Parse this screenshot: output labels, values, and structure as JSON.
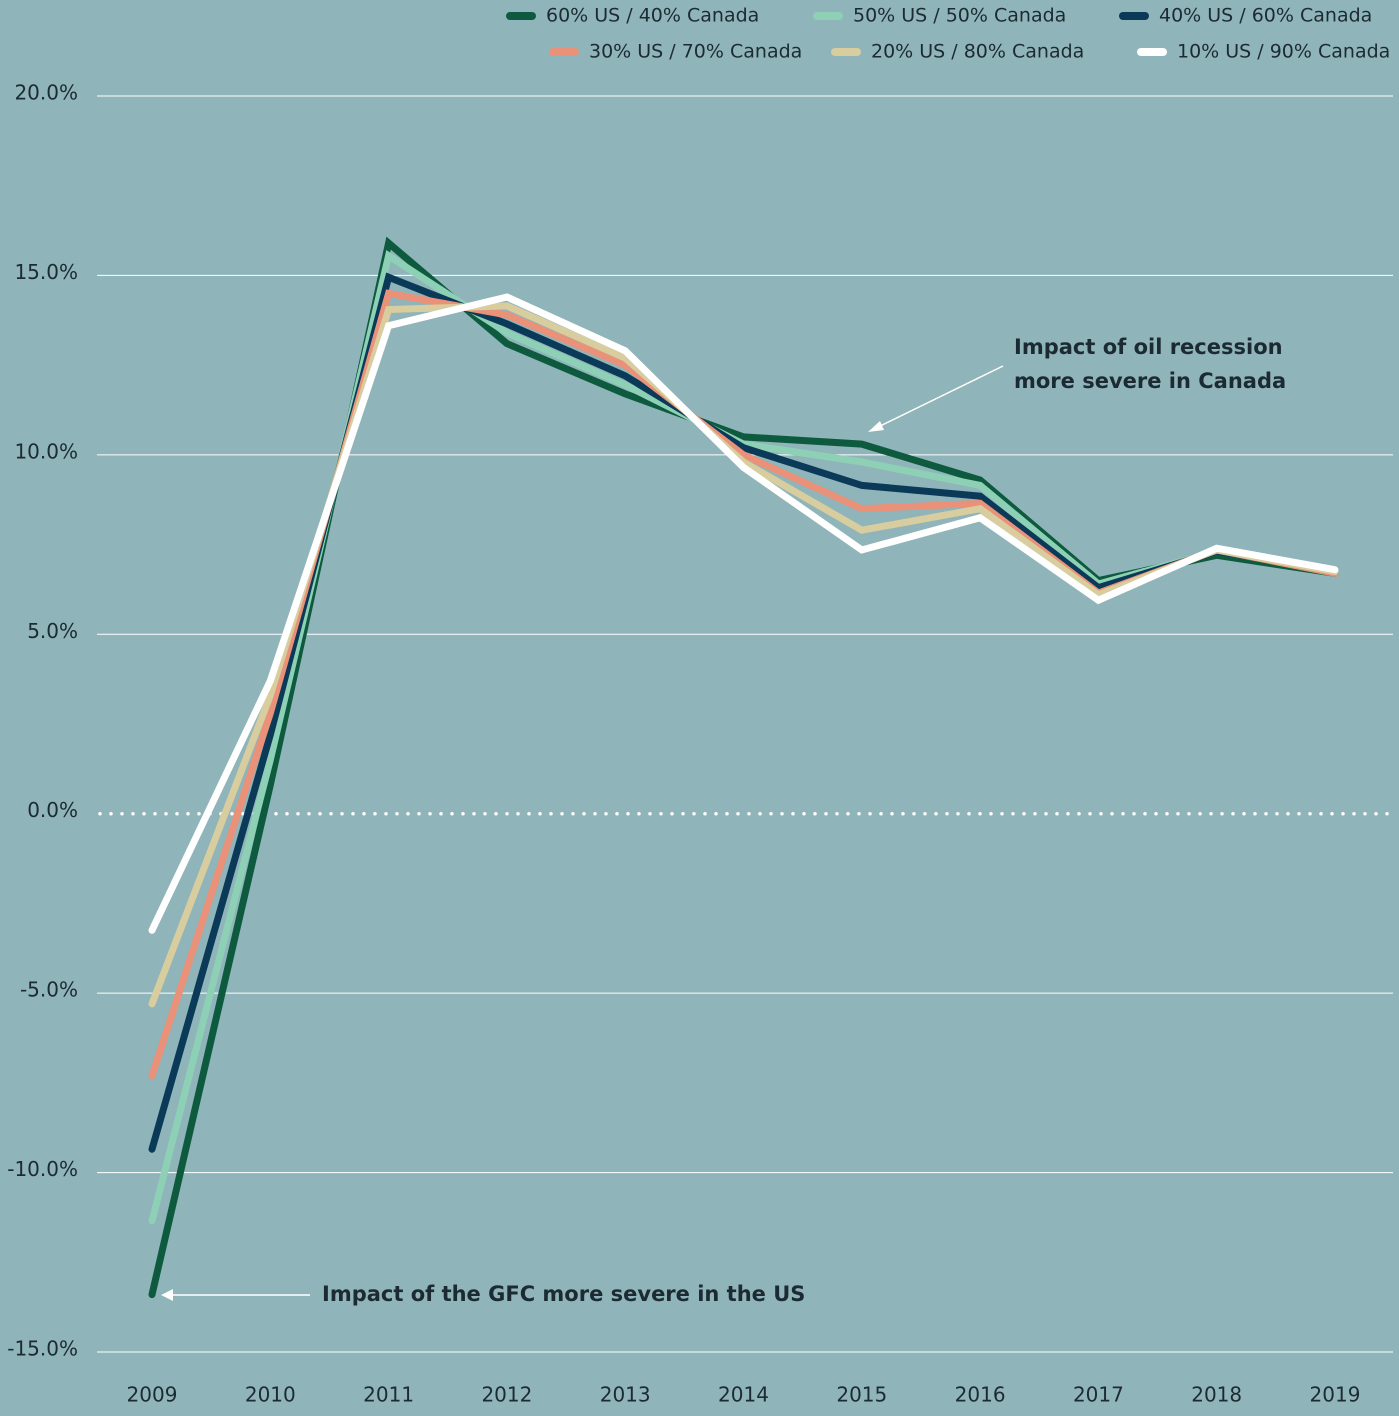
{
  "chart_data": {
    "type": "line",
    "categories": [
      "2009",
      "2010",
      "2011",
      "2012",
      "2013",
      "2014",
      "2015",
      "2016",
      "2017",
      "2018",
      "2019"
    ],
    "series": [
      {
        "name": "60% US / 40% Canada",
        "color": "#0d5a3e",
        "values": [
          -13.4,
          0.8,
          15.9,
          13.1,
          11.7,
          10.5,
          10.3,
          9.3,
          6.5,
          7.2,
          6.7
        ]
      },
      {
        "name": "50% US / 50% Canada",
        "color": "#8dd0b6",
        "values": [
          -11.35,
          1.5,
          15.55,
          13.4,
          11.95,
          10.3,
          9.8,
          9.15,
          6.4,
          7.3,
          6.8
        ]
      },
      {
        "name": "40% US / 60% Canada",
        "color": "#0b3a58",
        "values": [
          -9.35,
          2.2,
          14.95,
          13.65,
          12.2,
          10.2,
          9.15,
          8.85,
          6.3,
          7.3,
          6.8
        ]
      },
      {
        "name": "30% US / 70% Canada",
        "color": "#e99279",
        "values": [
          -7.3,
          2.8,
          14.5,
          13.9,
          12.5,
          10.0,
          8.5,
          8.65,
          6.15,
          7.35,
          6.7
        ]
      },
      {
        "name": "20% US / 80% Canada",
        "color": "#d8cd9f",
        "values": [
          -5.3,
          3.3,
          14.05,
          14.15,
          12.7,
          9.8,
          7.9,
          8.5,
          6.1,
          7.35,
          6.75
        ]
      },
      {
        "name": "10% US / 90% Canada",
        "color": "#ffffff",
        "values": [
          -3.25,
          3.7,
          13.6,
          14.4,
          12.9,
          9.65,
          7.35,
          8.25,
          5.95,
          7.4,
          6.8
        ]
      }
    ],
    "ylim": [
      -15,
      20
    ],
    "yticks": [
      {
        "value": -15,
        "label": "-15.0%"
      },
      {
        "value": -10,
        "label": "-10.0%"
      },
      {
        "value": -5,
        "label": "-5.0%"
      },
      {
        "value": 0,
        "label": "0.0%"
      },
      {
        "value": 5,
        "label": "5.0%"
      },
      {
        "value": 10,
        "label": "10.0%"
      },
      {
        "value": 15,
        "label": "15.0%"
      },
      {
        "value": 20,
        "label": "20.0%"
      }
    ],
    "grid": true,
    "legend": "top-right",
    "annotations": [
      {
        "text": [
          "Impact of oil recession",
          "more severe in Canada"
        ]
      },
      {
        "text": "Impact of the GFC more severe in the US"
      }
    ]
  }
}
